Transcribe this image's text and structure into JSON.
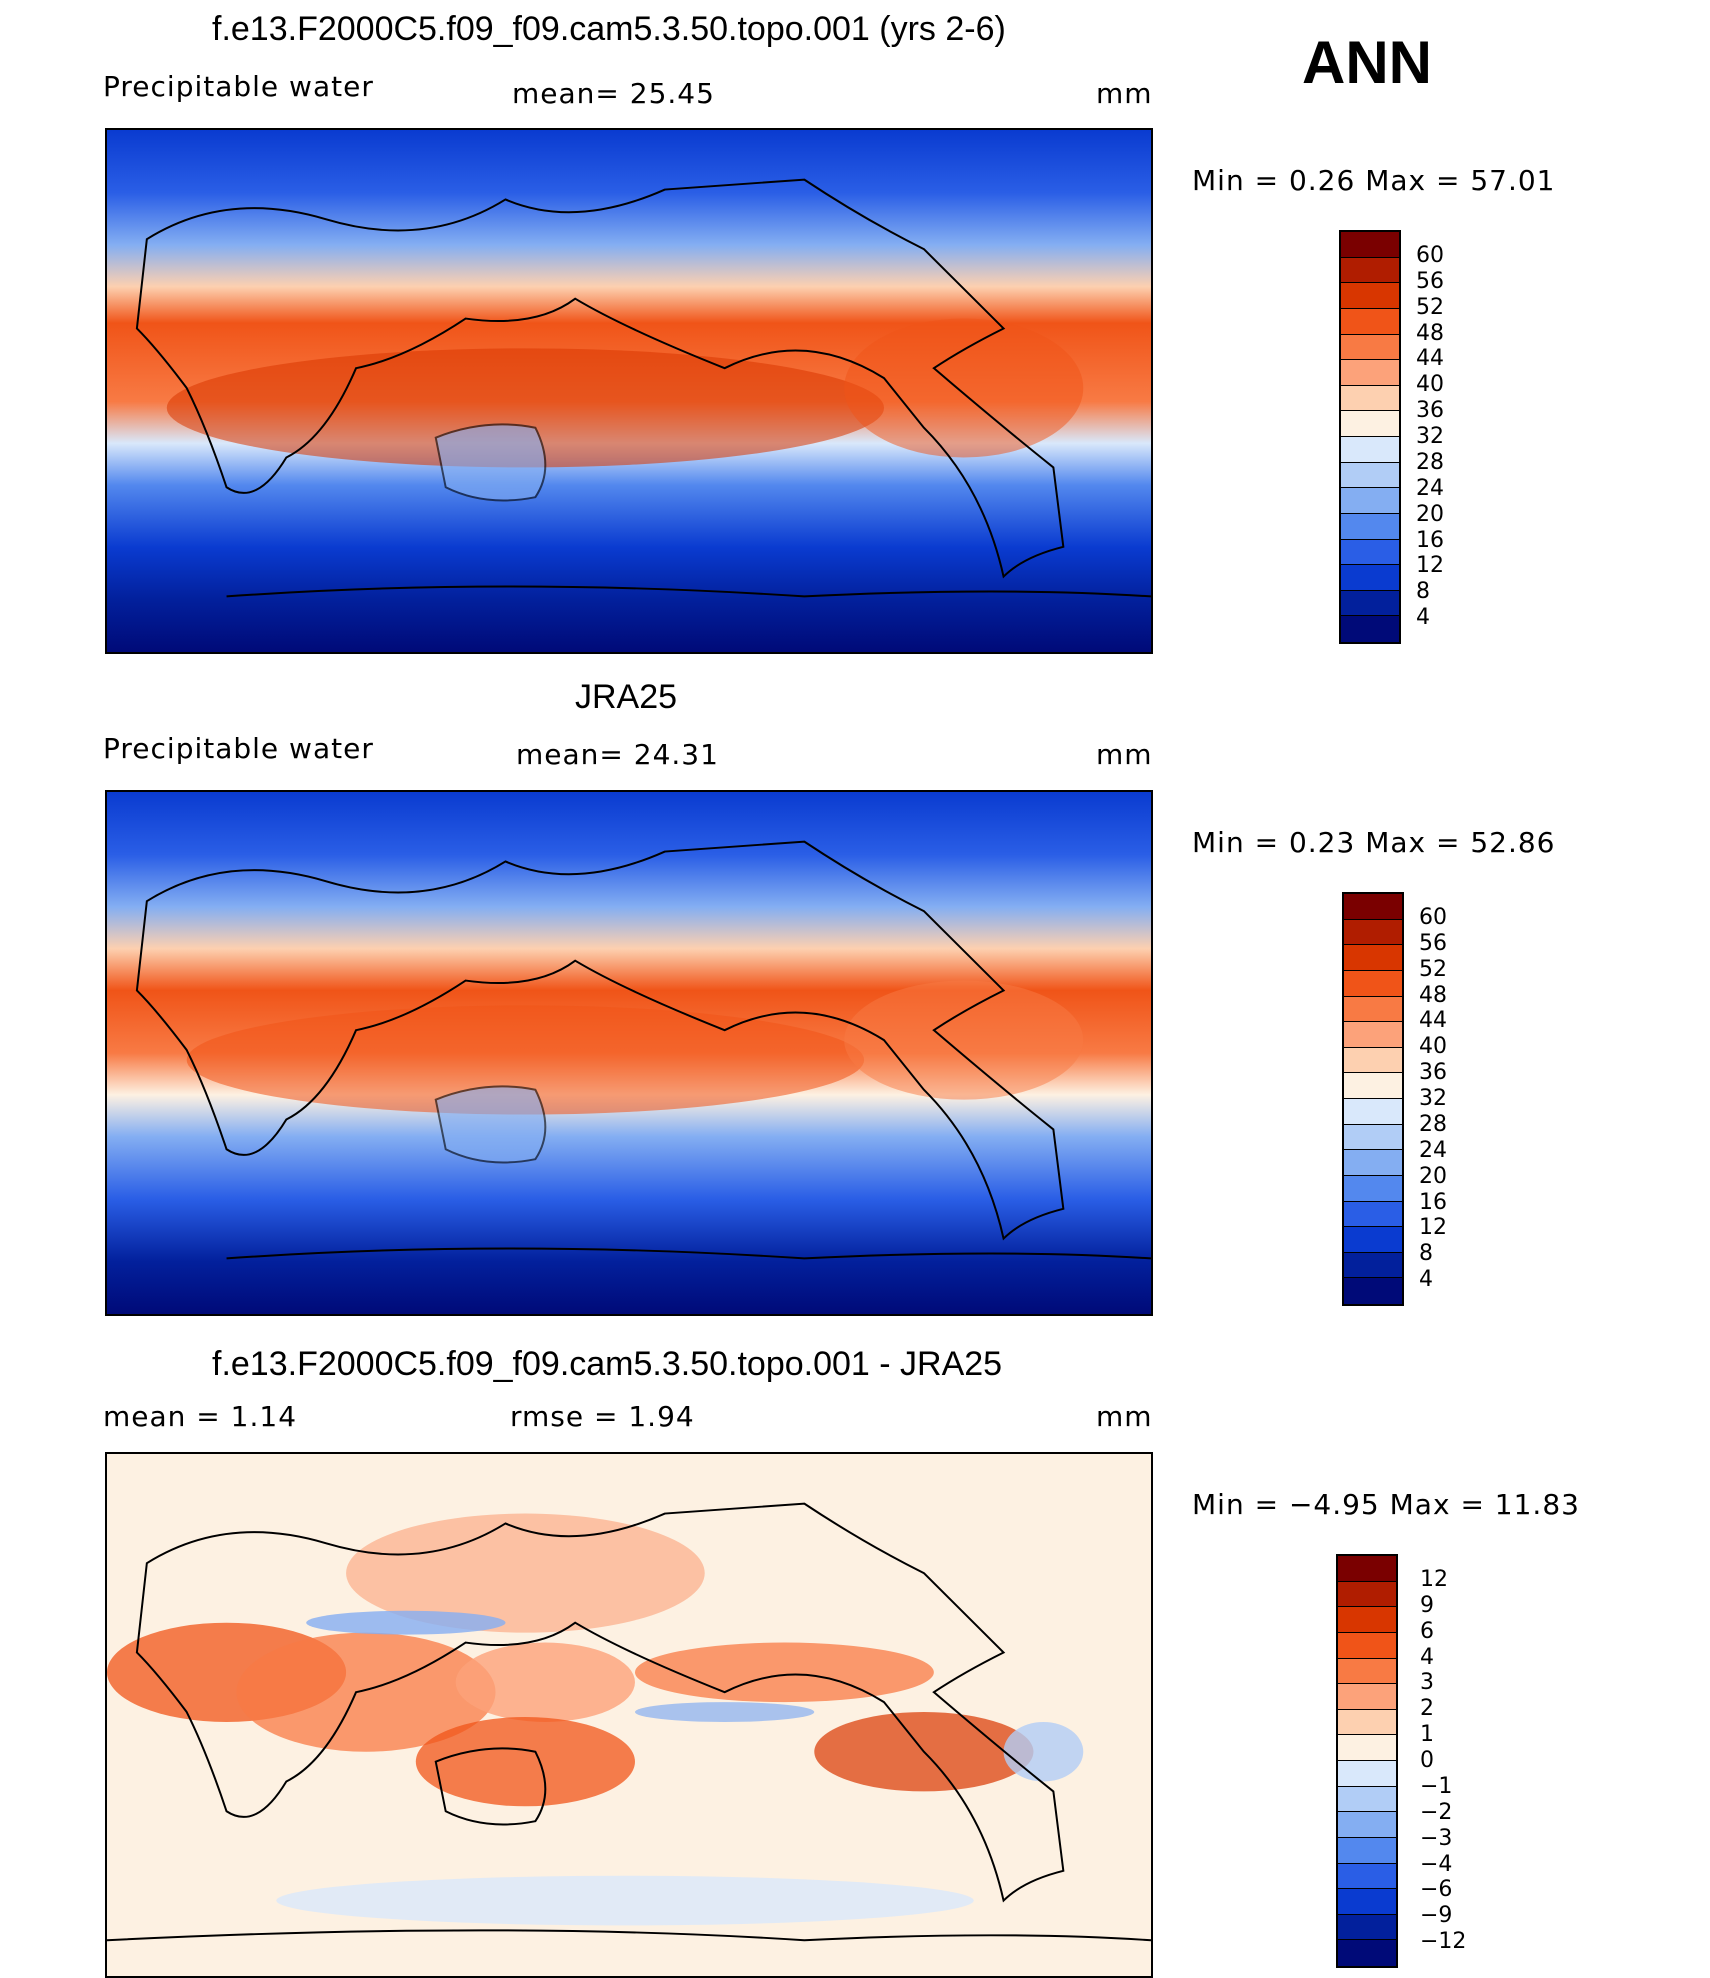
{
  "season": "ANN",
  "panels": [
    {
      "title": "f.e13.F2000C5.f09_f09.cam5.3.50.topo.001 (yrs 2-6)",
      "variable": "Precipitable  water",
      "stat": "mean=   25.45",
      "units": "mm",
      "minmax": "Min  =     0.26  Max  =     57.01",
      "colorbar": {
        "labels": [
          "60",
          "56",
          "52",
          "48",
          "44",
          "40",
          "36",
          "32",
          "28",
          "24",
          "20",
          "16",
          "12",
          "8",
          "4"
        ],
        "colors": [
          "#7a0000",
          "#b01d00",
          "#d83600",
          "#f05418",
          "#f87a44",
          "#fca27a",
          "#fdd0b0",
          "#fdf1e2",
          "#d9e8fb",
          "#b1cdf6",
          "#84aef2",
          "#5388ee",
          "#2a5ee6",
          "#0a3bd0",
          "#02209c",
          "#000a78"
        ]
      }
    },
    {
      "title": "JRA25",
      "variable": "Precipitable  water",
      "stat": "mean=   24.31",
      "units": "mm",
      "minmax": "Min  =     0.23  Max  =     52.86",
      "colorbar": {
        "labels": [
          "60",
          "56",
          "52",
          "48",
          "44",
          "40",
          "36",
          "32",
          "28",
          "24",
          "20",
          "16",
          "12",
          "8",
          "4"
        ],
        "colors": [
          "#7a0000",
          "#b01d00",
          "#d83600",
          "#f05418",
          "#f87a44",
          "#fca27a",
          "#fdd0b0",
          "#fdf1e2",
          "#d9e8fb",
          "#b1cdf6",
          "#84aef2",
          "#5388ee",
          "#2a5ee6",
          "#0a3bd0",
          "#02209c",
          "#000a78"
        ]
      }
    },
    {
      "title": "f.e13.F2000C5.f09_f09.cam5.3.50.topo.001 - JRA25",
      "variable": "mean  =      1.14",
      "stat": "rmse  =      1.94",
      "units": "mm",
      "minmax": "Min  =   −4.95  Max  =     11.83",
      "colorbar": {
        "labels": [
          "12",
          "9",
          "6",
          "4",
          "3",
          "2",
          "1",
          "0",
          "−1",
          "−2",
          "−3",
          "−4",
          "−6",
          "−9",
          "−12"
        ],
        "colors": [
          "#7a0000",
          "#b01d00",
          "#d83600",
          "#f05418",
          "#f87a44",
          "#fca27a",
          "#fdd0b0",
          "#fdf1e2",
          "#d9e8fb",
          "#b1cdf6",
          "#84aef2",
          "#5388ee",
          "#2a5ee6",
          "#0a3bd0",
          "#02209c",
          "#000a78"
        ]
      }
    }
  ]
}
